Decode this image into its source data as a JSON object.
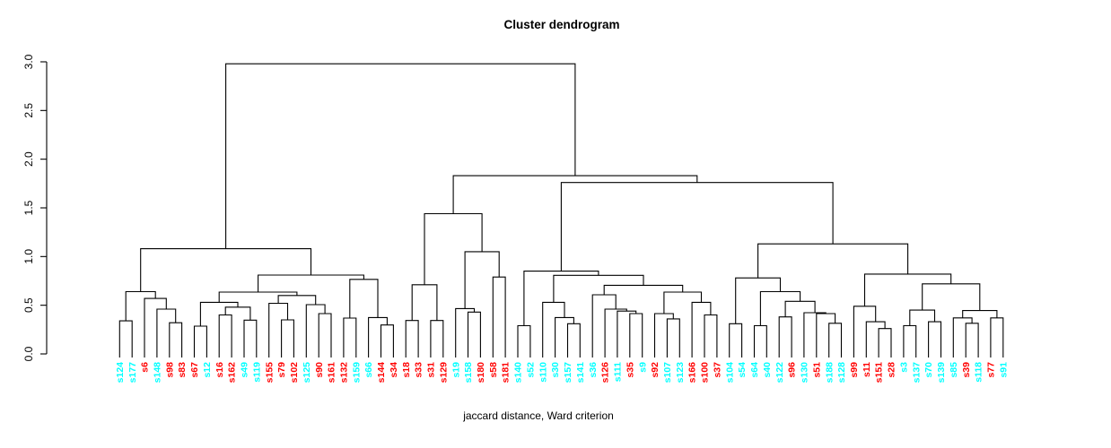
{
  "title": "Cluster dendrogram",
  "xlabel": "jaccard distance, Ward criterion",
  "colors": {
    "red": "#ff0000",
    "cyan": "#00ffff",
    "line": "#000000",
    "background": "#ffffff"
  },
  "chart_data": {
    "type": "dendrogram",
    "title": "Cluster dendrogram",
    "xlabel": "jaccard distance, Ward criterion",
    "ylabel": "",
    "ylim": [
      0,
      3
    ],
    "yticks": [
      "0.0",
      "0.5",
      "1.0",
      "1.5",
      "2.0",
      "2.5",
      "3.0"
    ],
    "grid": false,
    "leaves": [
      {
        "label": "s124",
        "color": "cyan"
      },
      {
        "label": "s177",
        "color": "cyan"
      },
      {
        "label": "s6",
        "color": "red"
      },
      {
        "label": "s148",
        "color": "cyan"
      },
      {
        "label": "s98",
        "color": "red"
      },
      {
        "label": "s83",
        "color": "red"
      },
      {
        "label": "s67",
        "color": "red"
      },
      {
        "label": "s12",
        "color": "cyan"
      },
      {
        "label": "s16",
        "color": "red"
      },
      {
        "label": "s162",
        "color": "red"
      },
      {
        "label": "s49",
        "color": "cyan"
      },
      {
        "label": "s119",
        "color": "cyan"
      },
      {
        "label": "s155",
        "color": "red"
      },
      {
        "label": "s79",
        "color": "red"
      },
      {
        "label": "s102",
        "color": "red"
      },
      {
        "label": "s125",
        "color": "cyan"
      },
      {
        "label": "s90",
        "color": "red"
      },
      {
        "label": "s161",
        "color": "red"
      },
      {
        "label": "s132",
        "color": "red"
      },
      {
        "label": "s159",
        "color": "cyan"
      },
      {
        "label": "s66",
        "color": "cyan"
      },
      {
        "label": "s144",
        "color": "red"
      },
      {
        "label": "s34",
        "color": "red"
      },
      {
        "label": "s18",
        "color": "red"
      },
      {
        "label": "s33",
        "color": "red"
      },
      {
        "label": "s31",
        "color": "red"
      },
      {
        "label": "s129",
        "color": "red"
      },
      {
        "label": "s19",
        "color": "cyan"
      },
      {
        "label": "s158",
        "color": "cyan"
      },
      {
        "label": "s180",
        "color": "red"
      },
      {
        "label": "s58",
        "color": "red"
      },
      {
        "label": "s181",
        "color": "red"
      },
      {
        "label": "s140",
        "color": "cyan"
      },
      {
        "label": "s52",
        "color": "cyan"
      },
      {
        "label": "s110",
        "color": "cyan"
      },
      {
        "label": "s30",
        "color": "cyan"
      },
      {
        "label": "s157",
        "color": "cyan"
      },
      {
        "label": "s141",
        "color": "cyan"
      },
      {
        "label": "s36",
        "color": "cyan"
      },
      {
        "label": "s126",
        "color": "red"
      },
      {
        "label": "s111",
        "color": "cyan"
      },
      {
        "label": "s35",
        "color": "red"
      },
      {
        "label": "s9",
        "color": "cyan"
      },
      {
        "label": "s92",
        "color": "red"
      },
      {
        "label": "s107",
        "color": "cyan"
      },
      {
        "label": "s123",
        "color": "cyan"
      },
      {
        "label": "s166",
        "color": "red"
      },
      {
        "label": "s100",
        "color": "red"
      },
      {
        "label": "s37",
        "color": "red"
      },
      {
        "label": "s104",
        "color": "cyan"
      },
      {
        "label": "s54",
        "color": "cyan"
      },
      {
        "label": "s64",
        "color": "cyan"
      },
      {
        "label": "s40",
        "color": "cyan"
      },
      {
        "label": "s122",
        "color": "cyan"
      },
      {
        "label": "s96",
        "color": "red"
      },
      {
        "label": "s130",
        "color": "cyan"
      },
      {
        "label": "s51",
        "color": "red"
      },
      {
        "label": "s188",
        "color": "cyan"
      },
      {
        "label": "s128",
        "color": "cyan"
      },
      {
        "label": "s99",
        "color": "red"
      },
      {
        "label": "s11",
        "color": "red"
      },
      {
        "label": "s151",
        "color": "red"
      },
      {
        "label": "s28",
        "color": "red"
      },
      {
        "label": "s3",
        "color": "cyan"
      },
      {
        "label": "s137",
        "color": "cyan"
      },
      {
        "label": "s70",
        "color": "cyan"
      },
      {
        "label": "s139",
        "color": "cyan"
      },
      {
        "label": "s85",
        "color": "cyan"
      },
      {
        "label": "s39",
        "color": "red"
      },
      {
        "label": "s118",
        "color": "cyan"
      },
      {
        "label": "s77",
        "color": "red"
      },
      {
        "label": "s91",
        "color": "cyan"
      }
    ],
    "tree": {
      "h": 2.98,
      "c": [
        {
          "h": 1.08,
          "c": [
            {
              "h": 0.64,
              "c": [
                {
                  "h": 0.34,
                  "c": [
                    "s124",
                    "s177"
                  ]
                },
                {
                  "h": 0.57,
                  "c": [
                    "s6",
                    {
                      "h": 0.46,
                      "c": [
                        "s148",
                        {
                          "h": 0.32,
                          "c": [
                            "s98",
                            "s83"
                          ]
                        }
                      ]
                    }
                  ]
                }
              ]
            },
            {
              "h": 0.81,
              "c": [
                {
                  "h": 0.635,
                  "c": [
                    {
                      "h": 0.53,
                      "c": [
                        {
                          "h": 0.285,
                          "c": [
                            "s67",
                            "s12"
                          ]
                        },
                        {
                          "h": 0.48,
                          "c": [
                            {
                              "h": 0.4,
                              "c": [
                                "s16",
                                "s162"
                              ]
                            },
                            {
                              "h": 0.347,
                              "c": [
                                "s49",
                                "s119"
                              ]
                            }
                          ]
                        }
                      ]
                    },
                    {
                      "h": 0.6,
                      "c": [
                        {
                          "h": 0.52,
                          "c": [
                            "s155",
                            {
                              "h": 0.35,
                              "c": [
                                "s79",
                                "s102"
                              ]
                            }
                          ]
                        },
                        {
                          "h": 0.506,
                          "c": [
                            "s125",
                            {
                              "h": 0.414,
                              "c": [
                                "s90",
                                "s161"
                              ]
                            }
                          ]
                        }
                      ]
                    }
                  ]
                },
                {
                  "h": 0.766,
                  "c": [
                    {
                      "h": 0.368,
                      "c": [
                        "s132",
                        "s159"
                      ]
                    },
                    {
                      "h": 0.374,
                      "c": [
                        "s66",
                        {
                          "h": 0.297,
                          "c": [
                            "s144",
                            "s34"
                          ]
                        }
                      ]
                    }
                  ]
                }
              ]
            }
          ]
        },
        {
          "h": 1.83,
          "c": [
            {
              "h": 1.44,
              "c": [
                {
                  "h": 0.71,
                  "c": [
                    {
                      "h": 0.343,
                      "c": [
                        "s18",
                        "s33"
                      ]
                    },
                    {
                      "h": 0.343,
                      "c": [
                        "s31",
                        "s129"
                      ]
                    }
                  ]
                },
                {
                  "h": 1.05,
                  "c": [
                    {
                      "h": 0.466,
                      "c": [
                        "s19",
                        {
                          "h": 0.43,
                          "c": [
                            "s158",
                            "s180"
                          ]
                        }
                      ]
                    },
                    {
                      "h": 0.79,
                      "c": [
                        "s58",
                        "s181"
                      ]
                    }
                  ]
                }
              ]
            },
            {
              "h": 1.76,
              "c": [
                {
                  "h": 0.85,
                  "c": [
                    {
                      "h": 0.29,
                      "c": [
                        "s140",
                        "s52"
                      ]
                    },
                    {
                      "h": 0.807,
                      "c": [
                        {
                          "h": 0.53,
                          "c": [
                            "s110",
                            {
                              "h": 0.374,
                              "c": [
                                "s30",
                                {
                                  "h": 0.31,
                                  "c": [
                                    "s157",
                                    "s141"
                                  ]
                                }
                              ]
                            }
                          ]
                        },
                        {
                          "h": 0.705,
                          "c": [
                            {
                              "h": 0.607,
                              "c": [
                                "s36",
                                {
                                  "h": 0.46,
                                  "c": [
                                    "s126",
                                    {
                                      "h": 0.44,
                                      "c": [
                                        "s111",
                                        {
                                          "h": 0.414,
                                          "c": [
                                            "s35",
                                            "s9"
                                          ]
                                        }
                                      ]
                                    }
                                  ]
                                }
                              ]
                            },
                            {
                              "h": 0.635,
                              "c": [
                                {
                                  "h": 0.414,
                                  "c": [
                                    "s92",
                                    {
                                      "h": 0.36,
                                      "c": [
                                        "s107",
                                        "s123"
                                      ]
                                    }
                                  ]
                                },
                                {
                                  "h": 0.53,
                                  "c": [
                                    "s166",
                                    {
                                      "h": 0.4,
                                      "c": [
                                        "s100",
                                        "s37"
                                      ]
                                    }
                                  ]
                                }
                              ]
                            }
                          ]
                        }
                      ]
                    }
                  ]
                },
                {
                  "h": 1.13,
                  "c": [
                    {
                      "h": 0.78,
                      "c": [
                        {
                          "h": 0.31,
                          "c": [
                            "s104",
                            "s54"
                          ]
                        },
                        {
                          "h": 0.64,
                          "c": [
                            {
                              "h": 0.29,
                              "c": [
                                "s64",
                                "s40"
                              ]
                            },
                            {
                              "h": 0.54,
                              "c": [
                                {
                                  "h": 0.38,
                                  "c": [
                                    "s122",
                                    "s96"
                                  ]
                                },
                                {
                                  "h": 0.423,
                                  "c": [
                                    "s130",
                                    {
                                      "h": 0.414,
                                      "c": [
                                        "s51",
                                        {
                                          "h": 0.315,
                                          "c": [
                                            "s188",
                                            "s128"
                                          ]
                                        }
                                      ]
                                    }
                                  ]
                                }
                              ]
                            }
                          ]
                        }
                      ]
                    },
                    {
                      "h": 0.82,
                      "c": [
                        {
                          "h": 0.49,
                          "c": [
                            "s99",
                            {
                              "h": 0.33,
                              "c": [
                                "s11",
                                {
                                  "h": 0.26,
                                  "c": [
                                    "s151",
                                    "s28"
                                  ]
                                }
                              ]
                            }
                          ]
                        },
                        {
                          "h": 0.72,
                          "c": [
                            {
                              "h": 0.45,
                              "c": [
                                {
                                  "h": 0.29,
                                  "c": [
                                    "s3",
                                    "s137"
                                  ]
                                },
                                {
                                  "h": 0.33,
                                  "c": [
                                    "s70",
                                    "s139"
                                  ]
                                }
                              ]
                            },
                            {
                              "h": 0.445,
                              "c": [
                                {
                                  "h": 0.37,
                                  "c": [
                                    "s85",
                                    {
                                      "h": 0.315,
                                      "c": [
                                        "s39",
                                        "s118"
                                      ]
                                    }
                                  ]
                                },
                                {
                                  "h": 0.37,
                                  "c": [
                                    "s77",
                                    "s91"
                                  ]
                                }
                              ]
                            }
                          ]
                        }
                      ]
                    }
                  ]
                }
              ]
            }
          ]
        }
      ]
    }
  }
}
